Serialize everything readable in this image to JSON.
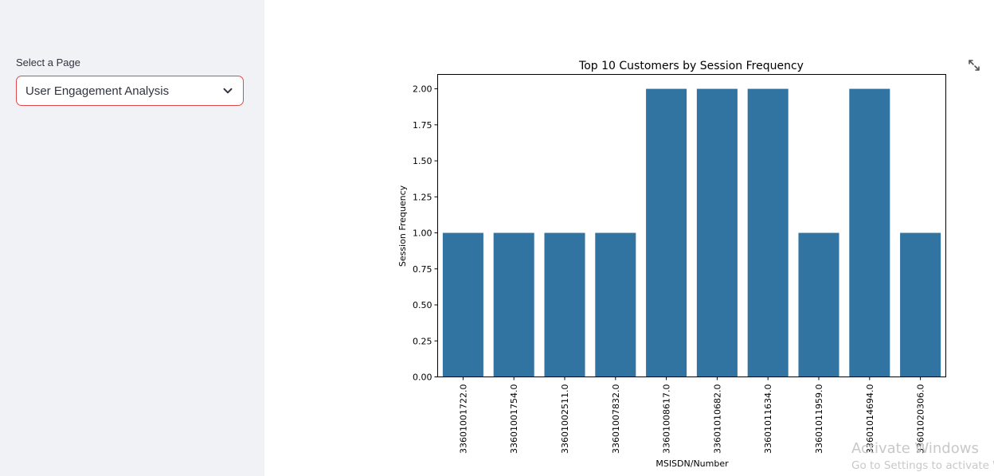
{
  "sidebar": {
    "select_label": "Select a Page",
    "select_value": "User Engagement Analysis",
    "chevron_icon": "chevron-down-icon"
  },
  "main": {
    "expand_icon": "fullscreen-expand-icon"
  },
  "chart_data": {
    "type": "bar",
    "title": "Top 10 Customers by Session Frequency",
    "xlabel": "MSISDN/Number",
    "ylabel": "Session Frequency",
    "categories": [
      "33601001722.0",
      "33601001754.0",
      "33601002511.0",
      "33601007832.0",
      "33601008617.0",
      "33601010682.0",
      "33601011634.0",
      "33601011959.0",
      "33601014694.0",
      "33601020306.0"
    ],
    "values": [
      1,
      1,
      1,
      1,
      2,
      2,
      2,
      1,
      2,
      1
    ],
    "ylim": [
      0,
      2.1
    ],
    "yticks": [
      "0.00",
      "0.25",
      "0.50",
      "0.75",
      "1.00",
      "1.25",
      "1.50",
      "1.75",
      "2.00"
    ],
    "grid": false,
    "bar_color": "#3274a1"
  },
  "watermark": {
    "title": "Activate Windows",
    "subtitle": "Go to Settings to activate Windows."
  },
  "colors": {
    "sidebar_bg": "#f0f2f6",
    "select_border": "#e0474c",
    "text": "#31333f"
  }
}
